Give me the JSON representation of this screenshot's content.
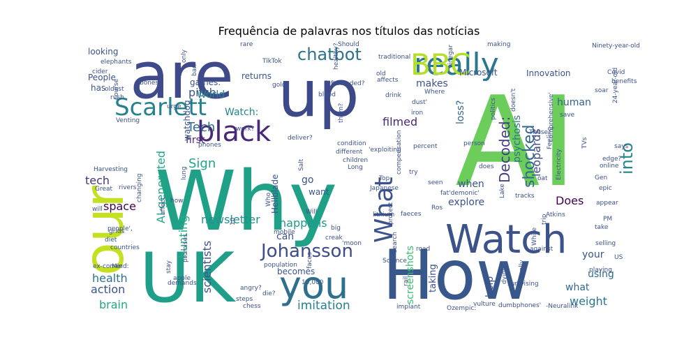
{
  "chart_data": {
    "type": "wordcloud",
    "title": "Frequência de palavras nos títulos das notícias",
    "background": "#ffffff",
    "colormap": "viridis",
    "words": [
      {
        "text": "AI",
        "weight": 100,
        "color": "#6ccd5a"
      },
      {
        "text": "Why",
        "weight": 98,
        "color": "#1fa188"
      },
      {
        "text": "UK",
        "weight": 78,
        "color": "#1f9e89"
      },
      {
        "text": "How",
        "weight": 78,
        "color": "#38588c"
      },
      {
        "text": "are",
        "weight": 72,
        "color": "#3e4a89"
      },
      {
        "text": "up",
        "weight": 72,
        "color": "#3e4989"
      },
      {
        "text": "our",
        "weight": 60,
        "color": "#c5e021"
      },
      {
        "text": "Watch",
        "weight": 48,
        "color": "#3b528b"
      },
      {
        "text": "you",
        "weight": 46,
        "color": "#2d708e"
      },
      {
        "text": "really",
        "weight": 40,
        "color": "#2a788e"
      },
      {
        "text": "BBC",
        "weight": 36,
        "color": "#b5de2b"
      },
      {
        "text": "black",
        "weight": 36,
        "color": "#482878"
      },
      {
        "text": "What",
        "weight": 34,
        "color": "#3b528b"
      },
      {
        "text": "Scarlett",
        "weight": 30,
        "color": "#26828e"
      },
      {
        "text": "Johansson",
        "weight": 24,
        "color": "#3e4c8a"
      },
      {
        "text": "chatbot",
        "weight": 22,
        "color": "#2c728e"
      },
      {
        "text": "into",
        "weight": 22,
        "color": "#25848e"
      },
      {
        "text": "shocked",
        "weight": 20,
        "color": "#31688e"
      },
      {
        "text": "Decoded:",
        "weight": 19,
        "color": "#433e85"
      },
      {
        "text": "imitation",
        "weight": 17,
        "color": "#27808e"
      },
      {
        "text": "Tech",
        "weight": 17,
        "color": "#2e6e8e"
      },
      {
        "text": "Sign",
        "weight": 17,
        "color": "#20a486"
      },
      {
        "text": "AI-generated",
        "weight": 15,
        "color": "#22a785"
      },
      {
        "text": "happens",
        "weight": 15,
        "color": "#1f998a"
      },
      {
        "text": "newsletter",
        "weight": 15,
        "color": "#21918c"
      },
      {
        "text": "filmed",
        "weight": 15,
        "color": "#482576"
      },
      {
        "text": "health",
        "weight": 15,
        "color": "#2c728e"
      },
      {
        "text": "weight",
        "weight": 15,
        "color": "#2b758e"
      },
      {
        "text": "brain",
        "weight": 15,
        "color": "#23a983"
      },
      {
        "text": "action",
        "weight": 15,
        "color": "#3b528b"
      },
      {
        "text": "pitch",
        "weight": 15,
        "color": "#3b528b"
      },
      {
        "text": "hunting",
        "weight": 15,
        "color": "#27ad81"
      },
      {
        "text": "scientists",
        "weight": 15,
        "color": "#3b528b"
      },
      {
        "text": "space",
        "weight": 15,
        "color": "#440154"
      },
      {
        "text": "tech",
        "weight": 15,
        "color": "#46337f"
      },
      {
        "text": "Does",
        "weight": 15,
        "color": "#440154"
      },
      {
        "text": "leopards",
        "weight": 15,
        "color": "#3f4889"
      },
      {
        "text": "Watch:",
        "weight": 13,
        "color": "#25848e"
      },
      {
        "text": "first",
        "weight": 13,
        "color": "#482878"
      },
      {
        "text": "human",
        "weight": 13,
        "color": "#34618d"
      },
      {
        "text": "makes",
        "weight": 13,
        "color": "#3b528b"
      },
      {
        "text": "loss?",
        "weight": 13,
        "color": "#32658e"
      },
      {
        "text": "World",
        "weight": 13,
        "color": "#25858e"
      },
      {
        "text": "psychosis",
        "weight": 12,
        "color": "#2c728e"
      },
      {
        "text": "screenshots",
        "weight": 12,
        "color": "#3dbc74"
      },
      {
        "text": "your",
        "weight": 12,
        "color": "#3a548c"
      },
      {
        "text": "help",
        "weight": 12,
        "color": "#3b528b"
      },
      {
        "text": "using",
        "weight": 12,
        "color": "#306a8e"
      },
      {
        "text": "what",
        "weight": 12,
        "color": "#31688e"
      },
      {
        "text": "explore",
        "weight": 12,
        "color": "#3b528b"
      },
      {
        "text": "when",
        "weight": 12,
        "color": "#3a548c"
      },
      {
        "text": "can",
        "weight": 12,
        "color": "#3b528b"
      },
      {
        "text": "go",
        "weight": 12,
        "color": "#3b528b"
      },
      {
        "text": "taking",
        "weight": 11,
        "color": "#3b528b"
      },
      {
        "text": "Hellblade",
        "weight": 10,
        "color": "#3b528b"
      },
      {
        "text": "want",
        "weight": 10,
        "color": "#3b528b"
      },
      {
        "text": "has",
        "weight": 10,
        "color": "#3b528b"
      },
      {
        "text": "People",
        "weight": 10,
        "color": "#3b528b"
      },
      {
        "text": "looking",
        "weight": 10,
        "color": "#3b528b"
      },
      {
        "text": "games:",
        "weight": 10,
        "color": "#3b528b"
      },
      {
        "text": "watchdog",
        "weight": 10,
        "color": "#3b528b"
      },
      {
        "text": "Microsoft",
        "weight": 10,
        "color": "#3b528b"
      },
      {
        "text": "Innovation",
        "weight": 10,
        "color": "#3b528b"
      },
      {
        "text": "returns",
        "weight": 9,
        "color": "#3b528b"
      },
      {
        "text": "becomes",
        "weight": 8,
        "color": "#3b528b"
      },
      {
        "text": "elephants",
        "weight": 6,
        "color": "#3b528b"
      },
      {
        "text": "cider",
        "weight": 6,
        "color": "#3b528b"
      },
      {
        "text": "oldest",
        "weight": 6,
        "color": "#3b528b"
      },
      {
        "text": "bones",
        "weight": 6,
        "color": "#3b528b"
      },
      {
        "text": "urge",
        "weight": 6,
        "color": "#3b528b"
      },
      {
        "text": "rare",
        "weight": 6,
        "color": "#3b528b"
      },
      {
        "text": "Should",
        "weight": 6,
        "color": "#3b528b"
      },
      {
        "text": "TikTok",
        "weight": 6,
        "color": "#3b528b"
      },
      {
        "text": "ban",
        "weight": 6,
        "color": "#3b528b"
      },
      {
        "text": "making",
        "weight": 6,
        "color": "#3b528b"
      },
      {
        "text": "Ninety-year-old",
        "weight": 6,
        "color": "#3b528b"
      },
      {
        "text": "them?",
        "weight": 6,
        "color": "#3b528b"
      },
      {
        "text": "left-handed?",
        "weight": 6,
        "color": "#3b528b"
      },
      {
        "text": "blood",
        "weight": 6,
        "color": "#3b528b"
      },
      {
        "text": "gold",
        "weight": 6,
        "color": "#3b528b"
      },
      {
        "text": "affects",
        "weight": 6,
        "color": "#3b528b"
      },
      {
        "text": "drink",
        "weight": 6,
        "color": "#3b528b"
      },
      {
        "text": "old",
        "weight": 6,
        "color": "#3b528b"
      },
      {
        "text": "dust'",
        "weight": 6,
        "color": "#3b528b"
      },
      {
        "text": "iron",
        "weight": 6,
        "color": "#3b528b"
      },
      {
        "text": "Where",
        "weight": 6,
        "color": "#3b528b"
      },
      {
        "text": "These",
        "weight": 6,
        "color": "#3b528b"
      },
      {
        "text": "soar",
        "weight": 6,
        "color": "#3b528b"
      },
      {
        "text": "benefits",
        "weight": 6,
        "color": "#3b528b"
      },
      {
        "text": "Covid",
        "weight": 6,
        "color": "#3b528b"
      },
      {
        "text": "save",
        "weight": 6,
        "color": "#3b528b"
      },
      {
        "text": "doesn't",
        "weight": 6,
        "color": "#3b528b"
      },
      {
        "text": "politics",
        "weight": 6,
        "color": "#3b528b"
      },
      {
        "text": "Venting",
        "weight": 6,
        "color": "#3b528b"
      },
      {
        "text": "course",
        "weight": 6,
        "color": "#3b528b"
      },
      {
        "text": "rush",
        "weight": 6,
        "color": "#3b528b"
      },
      {
        "text": "work?",
        "weight": 6,
        "color": "#3b528b"
      },
      {
        "text": "deliver?",
        "weight": 6,
        "color": "#3b528b"
      },
      {
        "text": "'exploiting",
        "weight": 6,
        "color": "#3b528b"
      },
      {
        "text": "phones",
        "weight": 6,
        "color": "#3b528b"
      },
      {
        "text": "condition",
        "weight": 6,
        "color": "#3b528b"
      },
      {
        "text": "different",
        "weight": 6,
        "color": "#3b528b"
      },
      {
        "text": "percent",
        "weight": 6,
        "color": "#3b528b"
      },
      {
        "text": "person",
        "weight": 6,
        "color": "#3b528b"
      },
      {
        "text": "does",
        "weight": 6,
        "color": "#3b528b"
      },
      {
        "text": "children",
        "weight": 6,
        "color": "#3b528b"
      },
      {
        "text": "Long",
        "weight": 6,
        "color": "#3b528b"
      },
      {
        "text": "Top",
        "weight": 6,
        "color": "#3b528b"
      },
      {
        "text": "try",
        "weight": 6,
        "color": "#3b528b"
      },
      {
        "text": "seen",
        "weight": 6,
        "color": "#3b528b"
      },
      {
        "text": "oat",
        "weight": 6,
        "color": "#3b528b"
      },
      {
        "text": "Harvesting",
        "weight": 6,
        "color": "#3b528b"
      },
      {
        "text": "Great",
        "weight": 6,
        "color": "#3b528b"
      },
      {
        "text": "rivers",
        "weight": 6,
        "color": "#3b528b"
      },
      {
        "text": "Who",
        "weight": 6,
        "color": "#3b528b"
      },
      {
        "text": "10",
        "weight": 6,
        "color": "#3b528b"
      },
      {
        "text": "Japanese",
        "weight": 6,
        "color": "#3b528b"
      },
      {
        "text": "fat'demonic'",
        "weight": 6,
        "color": "#3b528b"
      },
      {
        "text": "Lake",
        "weight": 6,
        "color": "#3b528b"
      },
      {
        "text": "tracks",
        "weight": 6,
        "color": "#3b528b"
      },
      {
        "text": "epic",
        "weight": 6,
        "color": "#3b528b"
      },
      {
        "text": "Gen",
        "weight": 6,
        "color": "#3b528b"
      },
      {
        "text": "online",
        "weight": 6,
        "color": "#3b528b"
      },
      {
        "text": "edge?",
        "weight": 6,
        "color": "#3b528b"
      },
      {
        "text": "says",
        "weight": 6,
        "color": "#3b528b"
      },
      {
        "text": "appear",
        "weight": 6,
        "color": "#3b528b"
      },
      {
        "text": "take",
        "weight": 6,
        "color": "#3b528b"
      },
      {
        "text": "PM",
        "weight": 6,
        "color": "#3b528b"
      },
      {
        "text": "Atkins",
        "weight": 6,
        "color": "#3b528b"
      },
      {
        "text": "trip",
        "weight": 6,
        "color": "#3b528b"
      },
      {
        "text": "will",
        "weight": 6,
        "color": "#3b528b"
      },
      {
        "text": "how",
        "weight": 6,
        "color": "#3b528b"
      },
      {
        "text": "Will",
        "weight": 6,
        "color": "#3b528b"
      },
      {
        "text": "Ros",
        "weight": 6,
        "color": "#3b528b"
      },
      {
        "text": "big",
        "weight": 6,
        "color": "#3b528b"
      },
      {
        "text": "protect",
        "weight": 6,
        "color": "#3b528b"
      },
      {
        "text": "faeces",
        "weight": 6,
        "color": "#3b528b"
      },
      {
        "text": "lithium",
        "weight": 6,
        "color": "#3b528b"
      },
      {
        "text": "affect",
        "weight": 6,
        "color": "#3b528b"
      },
      {
        "text": "grids",
        "weight": 6,
        "color": "#3b528b"
      },
      {
        "text": "diet",
        "weight": 6,
        "color": "#3b528b"
      },
      {
        "text": "countries",
        "weight": 6,
        "color": "#3b528b"
      },
      {
        "text": "people',",
        "weight": 6,
        "color": "#3b528b"
      },
      {
        "text": "mobile",
        "weight": 6,
        "color": "#3b528b"
      },
      {
        "text": "creak",
        "weight": 6,
        "color": "#3b528b"
      },
      {
        "text": "'moon",
        "weight": 6,
        "color": "#3b528b"
      },
      {
        "text": "search",
        "weight": 6,
        "color": "#3b528b"
      },
      {
        "text": "road",
        "weight": 6,
        "color": "#3b528b"
      },
      {
        "text": "against",
        "weight": 6,
        "color": "#3b528b"
      },
      {
        "text": "White",
        "weight": 6,
        "color": "#3b528b"
      },
      {
        "text": "selling",
        "weight": 6,
        "color": "#3b528b"
      },
      {
        "text": "US",
        "weight": 6,
        "color": "#3b528b"
      },
      {
        "text": "playing",
        "weight": 6,
        "color": "#3b528b"
      },
      {
        "text": "ex-comer",
        "weight": 6,
        "color": "#3b528b"
      },
      {
        "text": "Mind:",
        "weight": 6,
        "color": "#3b528b"
      },
      {
        "text": "promises",
        "weight": 6,
        "color": "#3b528b"
      },
      {
        "text": "apple",
        "weight": 6,
        "color": "#3b528b"
      },
      {
        "text": "demands",
        "weight": 6,
        "color": "#3b528b"
      },
      {
        "text": "population",
        "weight": 6,
        "color": "#3b528b"
      },
      {
        "text": "Science",
        "weight": 6,
        "color": "#3b528b"
      },
      {
        "text": "angry?",
        "weight": 6,
        "color": "#3b528b"
      },
      {
        "text": "steps",
        "weight": 6,
        "color": "#3b528b"
      },
      {
        "text": "chess",
        "weight": 6,
        "color": "#3b528b"
      },
      {
        "text": "die?",
        "weight": 6,
        "color": "#3b528b"
      },
      {
        "text": "10,000",
        "weight": 6,
        "color": "#3b528b"
      },
      {
        "text": "faces",
        "weight": 6,
        "color": "#3b528b"
      },
      {
        "text": "rail",
        "weight": 6,
        "color": "#3b528b"
      },
      {
        "text": "dying",
        "weight": 6,
        "color": "#3b528b"
      },
      {
        "text": "surprising",
        "weight": 6,
        "color": "#3b528b"
      },
      {
        "text": "actually",
        "weight": 6,
        "color": "#3b528b"
      },
      {
        "text": "implant",
        "weight": 6,
        "color": "#3b528b"
      },
      {
        "text": "Ozempic:",
        "weight": 6,
        "color": "#3b528b"
      },
      {
        "text": "vulture",
        "weight": 6,
        "color": "#3b528b"
      },
      {
        "text": "dumbphones'",
        "weight": 6,
        "color": "#3b528b"
      },
      {
        "text": "-Neuralink",
        "weight": 6,
        "color": "#3b528b"
      },
      {
        "text": "TVs",
        "weight": 6,
        "color": "#3b528b"
      },
      {
        "text": "Electricity",
        "weight": 6,
        "color": "#3b528b"
      },
      {
        "text": "Feeling",
        "weight": 6,
        "color": "#3b528b"
      },
      {
        "text": "24-year-old",
        "weight": 6,
        "color": "#3b528b"
      },
      {
        "text": "'comprehensive'",
        "weight": 6,
        "color": "#3b528b"
      },
      {
        "text": "compensation",
        "weight": 6,
        "color": "#3b528b"
      },
      {
        "text": "healthy?",
        "weight": 6,
        "color": "#3b528b"
      },
      {
        "text": "vinegar",
        "weight": 6,
        "color": "#3b528b"
      },
      {
        "text": "traditional",
        "weight": 6,
        "color": "#3b528b"
      },
      {
        "text": "Salt",
        "weight": 6,
        "color": "#3b528b"
      },
      {
        "text": "lung",
        "weight": 6,
        "color": "#3b528b"
      },
      {
        "text": "stay",
        "weight": 6,
        "color": "#3b528b"
      },
      {
        "text": "changing",
        "weight": 6,
        "color": "#3b528b"
      },
      {
        "text": "only",
        "weight": 6,
        "color": "#3b528b"
      },
      {
        "text": "patient",
        "weight": 6,
        "color": "#3b528b"
      },
      {
        "text": "deadly",
        "weight": 6,
        "color": "#3b528b"
      },
      {
        "text": "seeking",
        "weight": 6,
        "color": "#3b528b"
      }
    ]
  }
}
